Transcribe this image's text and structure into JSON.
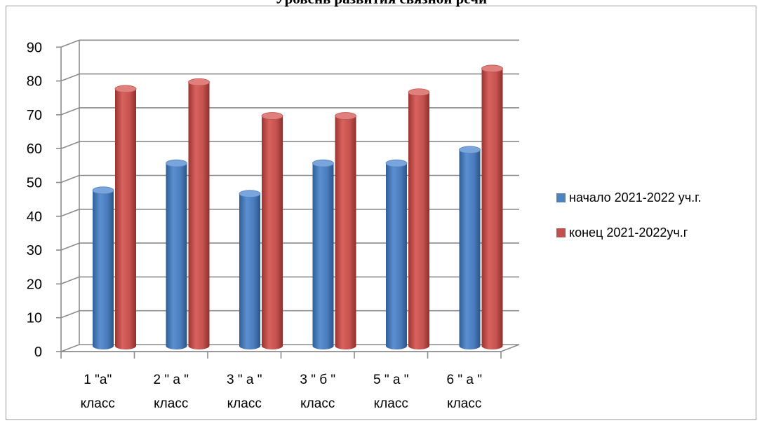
{
  "chart_data": {
    "type": "bar",
    "title": "Уровень  развития связной речи",
    "categories": [
      [
        "1 \"а\"",
        "класс"
      ],
      [
        "2 \" а \"",
        "класс"
      ],
      [
        "3 \" а \"",
        "класс"
      ],
      [
        "3 \" б \"",
        "класс"
      ],
      [
        "5 \" а \"",
        "класс"
      ],
      [
        "6 \" а \"",
        "класс"
      ]
    ],
    "series": [
      {
        "name": "начало 2021-2022 уч.г.",
        "color": "#4f81bd",
        "values": [
          46,
          54,
          45,
          54,
          54,
          58
        ]
      },
      {
        "name": "конец 2021-2022уч.г",
        "color": "#c0504d",
        "values": [
          76,
          78,
          68,
          68,
          75,
          82
        ]
      }
    ],
    "ylim": [
      0,
      90
    ],
    "yticks": [
      0,
      10,
      20,
      30,
      40,
      50,
      60,
      70,
      80,
      90
    ],
    "grid": true,
    "legend": "right"
  }
}
